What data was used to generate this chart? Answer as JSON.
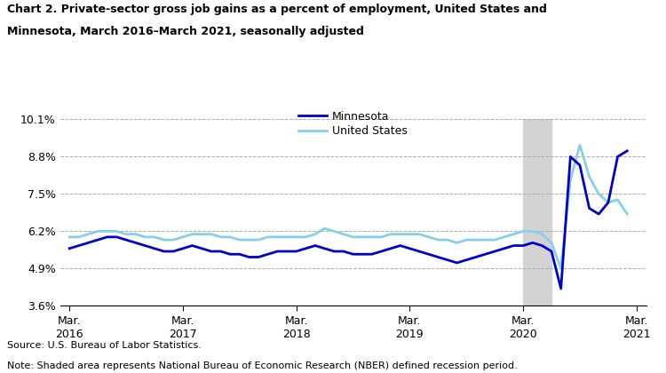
{
  "title_line1": "Chart 2. Private-sector gross job gains as a percent of employment, United States and",
  "title_line2": "Minnesota, March 2016–March 2021, seasonally adjusted",
  "source": "Source: U.S. Bureau of Labor Statistics.",
  "note": "Note: Shaded area represents National Bureau of Economic Research (NBER) defined recession period.",
  "mn_color": "#0000CD",
  "us_color": "#87CEEB",
  "recession_color": "#D3D3D3",
  "recession_start": 48,
  "recession_end": 51,
  "ylim": [
    3.6,
    10.1
  ],
  "yticks": [
    3.6,
    4.9,
    6.2,
    7.5,
    8.8,
    10.1
  ],
  "ytick_labels": [
    "3.6%",
    "4.9%",
    "6.2%",
    "7.5%",
    "8.8%",
    "10.1%"
  ],
  "xtick_positions": [
    0,
    12,
    24,
    36,
    48,
    60
  ],
  "xtick_labels": [
    "Mar.\n2016",
    "Mar.\n2017",
    "Mar.\n2018",
    "Mar.\n2019",
    "Mar.\n2020",
    "Mar.\n2021"
  ],
  "minnesota": [
    5.6,
    5.7,
    5.8,
    5.9,
    6.0,
    6.0,
    5.9,
    5.8,
    5.7,
    5.6,
    5.5,
    5.5,
    5.6,
    5.7,
    5.6,
    5.5,
    5.5,
    5.4,
    5.4,
    5.3,
    5.3,
    5.4,
    5.5,
    5.5,
    5.5,
    5.6,
    5.7,
    5.6,
    5.5,
    5.5,
    5.4,
    5.4,
    5.4,
    5.5,
    5.6,
    5.7,
    5.6,
    5.5,
    5.4,
    5.3,
    5.2,
    5.1,
    5.2,
    5.3,
    5.4,
    5.5,
    5.6,
    5.7,
    5.7,
    5.8,
    5.7,
    5.5,
    4.2,
    8.8,
    8.5,
    7.0,
    6.8,
    7.2,
    8.8,
    9.0
  ],
  "united_states": [
    6.0,
    6.0,
    6.1,
    6.2,
    6.2,
    6.2,
    6.1,
    6.1,
    6.0,
    6.0,
    5.9,
    5.9,
    6.0,
    6.1,
    6.1,
    6.1,
    6.0,
    6.0,
    5.9,
    5.9,
    5.9,
    6.0,
    6.0,
    6.0,
    6.0,
    6.0,
    6.1,
    6.3,
    6.2,
    6.1,
    6.0,
    6.0,
    6.0,
    6.0,
    6.1,
    6.1,
    6.1,
    6.1,
    6.0,
    5.9,
    5.9,
    5.8,
    5.9,
    5.9,
    5.9,
    5.9,
    6.0,
    6.1,
    6.2,
    6.2,
    6.1,
    5.8,
    4.9,
    8.0,
    9.2,
    8.1,
    7.5,
    7.2,
    7.3,
    6.8
  ]
}
